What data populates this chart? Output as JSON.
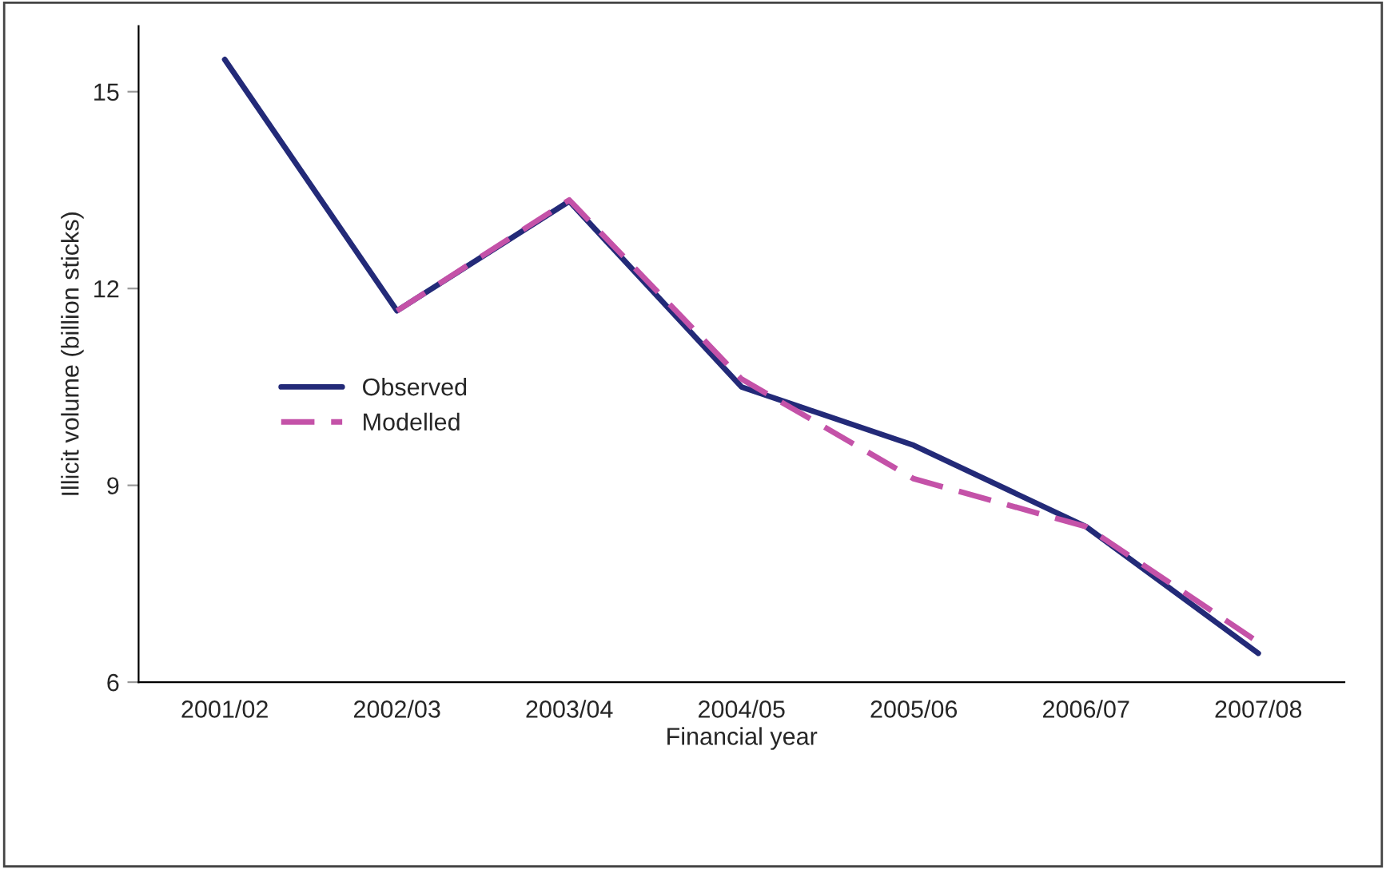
{
  "chart_data": {
    "type": "line",
    "xlabel": "Financial year",
    "ylabel": "Illicit volume (billion sticks)",
    "categories": [
      "2001/02",
      "2002/03",
      "2003/04",
      "2004/05",
      "2005/06",
      "2006/07",
      "2007/08"
    ],
    "series": [
      {
        "name": "Observed",
        "color": "#232a78",
        "line_style": "solid",
        "values": [
          15.49,
          11.66,
          13.33,
          10.5,
          9.61,
          8.37,
          6.44
        ]
      },
      {
        "name": "Modelled",
        "color": "#c452a8",
        "line_style": "dashed",
        "values": [
          null,
          11.66,
          13.35,
          10.62,
          9.1,
          8.37,
          6.61
        ]
      }
    ],
    "ylim": [
      6,
      16
    ],
    "yticks": [
      6,
      9,
      12,
      15
    ],
    "grid": false,
    "legend": "left",
    "marker": "none"
  }
}
